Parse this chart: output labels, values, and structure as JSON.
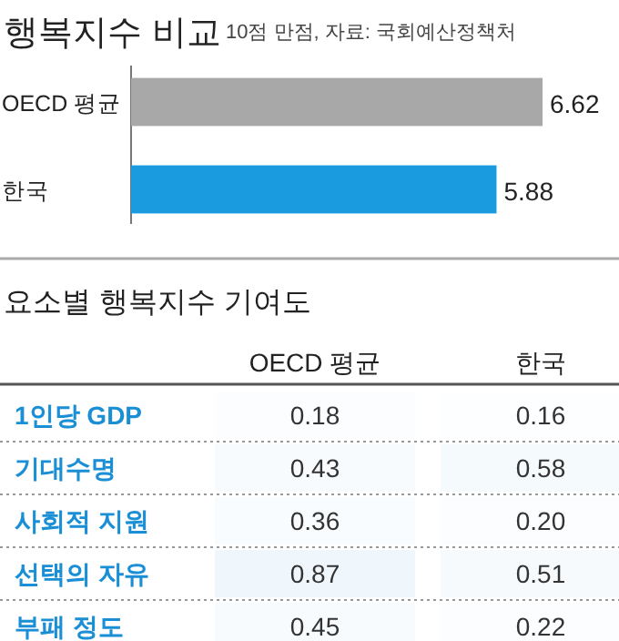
{
  "chart_data": [
    {
      "type": "bar",
      "orientation": "horizontal",
      "title": "행복지수 비교",
      "subtitle": "10점 만점, 자료: 국회예산정책처",
      "categories": [
        "OECD 평균",
        "한국"
      ],
      "values": [
        6.62,
        5.88
      ],
      "colors": [
        "#a8a8a8",
        "#1a9be0"
      ],
      "data_labels": true
    },
    {
      "type": "heatmap",
      "title": "요소별 행복지수 기여도",
      "categories": [
        "OECD 평균",
        "한국"
      ],
      "y_categories": [
        "1인당 GDP",
        "기대수명",
        "사회적 지원",
        "선택의 자유",
        "부패 정도"
      ],
      "cells": [
        [
          0.18,
          0.16
        ],
        [
          0.43,
          0.58
        ],
        [
          0.36,
          0.2
        ],
        [
          0.87,
          0.51
        ],
        [
          0.45,
          0.22
        ]
      ],
      "cell_labels": [
        [
          "0.18",
          "0.16"
        ],
        [
          "0.43",
          "0.58"
        ],
        [
          "0.36",
          "0.20"
        ],
        [
          "0.87",
          "0.51"
        ],
        [
          "0.45",
          "0.22"
        ]
      ],
      "data_labels": true
    }
  ]
}
